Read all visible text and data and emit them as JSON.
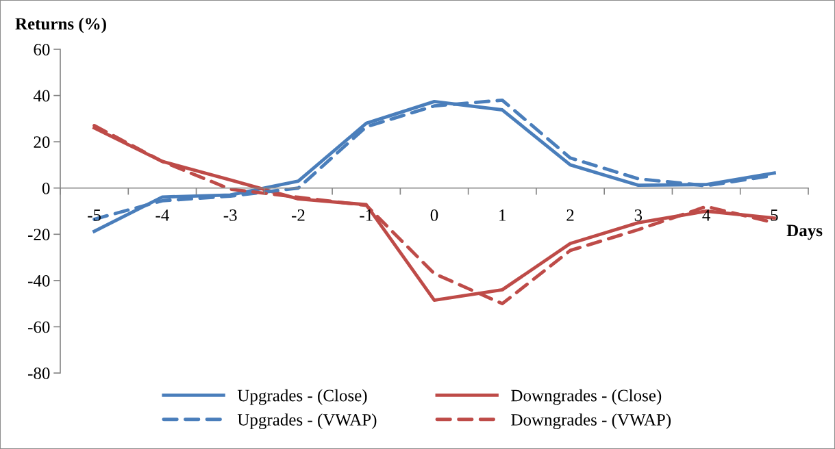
{
  "chart_data": {
    "type": "line",
    "ylabel": "Returns (%)",
    "xlabel": "Days",
    "categories": [
      "-5",
      "-4",
      "-3",
      "-2",
      "-1",
      "0",
      "1",
      "2",
      "3",
      "4",
      "5"
    ],
    "series": [
      {
        "name": "Upgrades - (Close)",
        "color": "#4a7ebb",
        "line_style": "solid",
        "values": [
          -18.7,
          -3.9,
          -3,
          3,
          28,
          37.4,
          33.8,
          10,
          1.2,
          1.5,
          6.5
        ]
      },
      {
        "name": "Downgrades - (Close)",
        "color": "#be4b48",
        "line_style": "solid",
        "values": [
          26,
          11.5,
          3.5,
          -4.7,
          -7.2,
          -48.5,
          -44,
          -24,
          -15,
          -10,
          -13
        ]
      },
      {
        "name": "Upgrades - (VWAP)",
        "color": "#4a7ebb",
        "line_style": "dashed",
        "values": [
          -13.5,
          -5.5,
          -3.5,
          0,
          26.5,
          35.5,
          38,
          13,
          4,
          1,
          5.5
        ]
      },
      {
        "name": "Downgrades - (VWAP)",
        "color": "#be4b48",
        "line_style": "dashed",
        "values": [
          27,
          11.5,
          -0.5,
          -4,
          -7.5,
          -37,
          -50,
          -27,
          -18,
          -8,
          -15
        ]
      }
    ],
    "ylim": [
      -80,
      60
    ],
    "yticks": [
      -80,
      -60,
      -40,
      -20,
      0,
      20,
      40,
      60
    ],
    "grid": false,
    "legend": "bottom",
    "marker": "none"
  }
}
